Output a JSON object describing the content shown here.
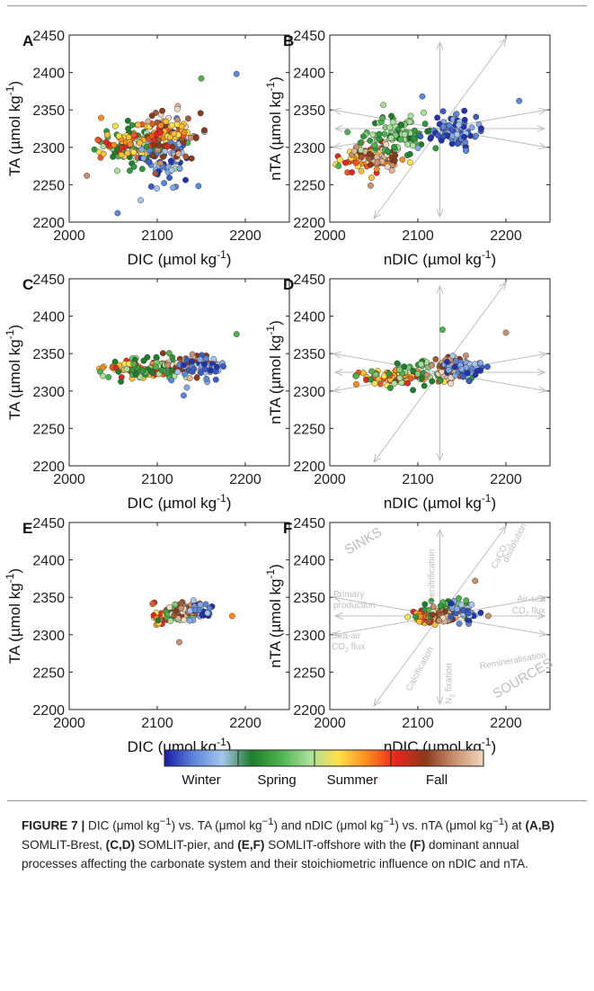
{
  "figure": {
    "colorbar": {
      "stops": [
        "#1a1aa6",
        "#5b86d9",
        "#a7c6ee",
        "#1e7e2a",
        "#4db34d",
        "#a8e09a",
        "#ffe14a",
        "#ff8a1e",
        "#e8251e",
        "#8b3a1a",
        "#c89070",
        "#f1d9bd"
      ],
      "season_labels": [
        "Winter",
        "Spring",
        "Summer",
        "Fall"
      ]
    },
    "season_colors": {
      "winter": [
        "#2233b0",
        "#3a5cc8",
        "#5b86d9",
        "#86a8e6",
        "#a7c6ee"
      ],
      "spring": [
        "#1e7e2a",
        "#2f9a3c",
        "#4db34d",
        "#7cc97a",
        "#a8e09a"
      ],
      "summer": [
        "#ffe14a",
        "#ffc030",
        "#ff8a1e",
        "#f25520",
        "#e8251e"
      ],
      "fall": [
        "#8b3a1a",
        "#a35a35",
        "#c89070",
        "#dcb497",
        "#f1d9bd"
      ]
    },
    "arrow_color": "#bdbdbd",
    "process_labels": {
      "sinks": "SINKS",
      "sources": "SOURCES",
      "denitrification": "Denitrification",
      "caco3_dissolution_1": "CaCO",
      "caco3_dissolution_2": "3",
      "caco3_dissolution_3": "dissolution",
      "air_sea_1": "Air-sea",
      "air_sea_2": "CO",
      "air_sea_3": "2",
      "air_sea_4": "flux",
      "primary_production_1": "Primary",
      "primary_production_2": "production",
      "sea_air_1": "Sea-air",
      "sea_air_2": "CO",
      "sea_air_3": "2",
      "sea_air_4": "flux",
      "remineralisation": "Remineralisation",
      "calcification": "Calcification",
      "n2_fixation_1": "N",
      "n2_fixation_2": "2",
      "n2_fixation_3": "fixation"
    },
    "caption": {
      "label": "FIGURE 7 |",
      "t1": " DIC (μmol kg",
      "t2": ") vs. TA (μmol kg",
      "t3": ") and nDIC (μmol kg",
      "t4": ") vs. nTA (μmol kg",
      "t5": ") at ",
      "ab": "(A,B)",
      "t6": " SOMLIT-Brest, ",
      "cd": "(C,D)",
      "t7": " SOMLIT-pier, and ",
      "ef": "(E,F)",
      "t8": " SOMLIT-offshore with the ",
      "f": "(F)",
      "t9": " dominant annual processes affecting the carbonate system and their stoichiometric influence on nDIC and nTA.",
      "sup": "−1"
    }
  },
  "chart_data": [
    {
      "panel": "A",
      "type": "scatter",
      "xlabel": "DIC (µmol kg",
      "ylabel": "TA (µmol kg",
      "unit_sup": "-1",
      "xlim": [
        2000,
        2250
      ],
      "ylim": [
        2200,
        2450
      ],
      "xticks": [
        "2000",
        "2100",
        "2200"
      ],
      "yticks": [
        "2200",
        "2250",
        "2300",
        "2350",
        "2400",
        "2450"
      ],
      "clusters": [
        {
          "season": "spring",
          "n": 90,
          "cx": 2075,
          "cy": 2305,
          "sx": 30,
          "sy": 20
        },
        {
          "season": "summer",
          "n": 60,
          "cx": 2065,
          "cy": 2305,
          "sx": 25,
          "sy": 18
        },
        {
          "season": "winter",
          "n": 70,
          "cx": 2110,
          "cy": 2290,
          "sx": 18,
          "sy": 28
        },
        {
          "season": "fall",
          "n": 55,
          "cx": 2115,
          "cy": 2315,
          "sx": 22,
          "sy": 20
        },
        {
          "season": "summer",
          "n": 40,
          "cx": 2110,
          "cy": 2320,
          "sx": 18,
          "sy": 12
        }
      ],
      "extremes": [
        [
          2190,
          2398
        ],
        [
          2055,
          2212
        ],
        [
          2150,
          2392
        ],
        [
          2020,
          2262
        ]
      ]
    },
    {
      "panel": "B",
      "type": "scatter",
      "xlabel": "nDIC (µmol kg",
      "ylabel": "nTA (µmol kg",
      "unit_sup": "-1",
      "xlim": [
        2000,
        2250
      ],
      "ylim": [
        2200,
        2450
      ],
      "xticks": [
        "2000",
        "2100",
        "2200"
      ],
      "yticks": [
        "2200",
        "2250",
        "2300",
        "2350",
        "2400",
        "2450"
      ],
      "process_arrows": true,
      "clusters": [
        {
          "season": "summer",
          "n": 90,
          "cx": 2045,
          "cy": 2285,
          "sx": 20,
          "sy": 12
        },
        {
          "season": "fall",
          "n": 60,
          "cx": 2055,
          "cy": 2285,
          "sx": 20,
          "sy": 12
        },
        {
          "season": "spring",
          "n": 90,
          "cx": 2080,
          "cy": 2315,
          "sx": 28,
          "sy": 20
        },
        {
          "season": "winter",
          "n": 80,
          "cx": 2140,
          "cy": 2320,
          "sx": 18,
          "sy": 18
        }
      ],
      "extremes": [
        [
          2215,
          2362
        ],
        [
          2010,
          2275
        ],
        [
          2105,
          2368
        ]
      ]
    },
    {
      "panel": "C",
      "type": "scatter",
      "xlabel": "DIC (µmol kg",
      "ylabel": "TA (µmol kg",
      "unit_sup": "-1",
      "xlim": [
        2000,
        2250
      ],
      "ylim": [
        2200,
        2450
      ],
      "xticks": [
        "2000",
        "2100",
        "2200"
      ],
      "yticks": [
        "2200",
        "2250",
        "2300",
        "2350",
        "2400",
        "2450"
      ],
      "clusters": [
        {
          "season": "summer",
          "n": 70,
          "cx": 2080,
          "cy": 2330,
          "sx": 25,
          "sy": 8
        },
        {
          "season": "spring",
          "n": 60,
          "cx": 2095,
          "cy": 2330,
          "sx": 30,
          "sy": 12
        },
        {
          "season": "fall",
          "n": 50,
          "cx": 2135,
          "cy": 2335,
          "sx": 18,
          "sy": 10
        },
        {
          "season": "winter",
          "n": 45,
          "cx": 2150,
          "cy": 2330,
          "sx": 16,
          "sy": 12
        }
      ],
      "extremes": [
        [
          2190,
          2376
        ],
        [
          2035,
          2326
        ],
        [
          2130,
          2294
        ]
      ]
    },
    {
      "panel": "D",
      "type": "scatter",
      "xlabel": "nDIC (µmol kg",
      "ylabel": "nTA (µmol kg",
      "unit_sup": "-1",
      "xlim": [
        2000,
        2250
      ],
      "ylim": [
        2200,
        2450
      ],
      "xticks": [
        "2000",
        "2100",
        "2200"
      ],
      "yticks": [
        "2200",
        "2250",
        "2300",
        "2350",
        "2400",
        "2450"
      ],
      "process_arrows": true,
      "clusters": [
        {
          "season": "summer",
          "n": 70,
          "cx": 2075,
          "cy": 2318,
          "sx": 28,
          "sy": 7
        },
        {
          "season": "spring",
          "n": 55,
          "cx": 2100,
          "cy": 2325,
          "sx": 30,
          "sy": 14
        },
        {
          "season": "fall",
          "n": 50,
          "cx": 2135,
          "cy": 2330,
          "sx": 16,
          "sy": 10
        },
        {
          "season": "winter",
          "n": 45,
          "cx": 2150,
          "cy": 2330,
          "sx": 15,
          "sy": 10
        }
      ],
      "extremes": [
        [
          2200,
          2378
        ],
        [
          2128,
          2382
        ],
        [
          2030,
          2320
        ]
      ]
    },
    {
      "panel": "E",
      "type": "scatter",
      "xlabel": "DIC (µmol kg",
      "ylabel": "TA (µmol kg",
      "unit_sup": "-1",
      "xlim": [
        2000,
        2250
      ],
      "ylim": [
        2200,
        2450
      ],
      "xticks": [
        "2000",
        "2100",
        "2200"
      ],
      "yticks": [
        "2200",
        "2250",
        "2300",
        "2350",
        "2400",
        "2450"
      ],
      "clusters": [
        {
          "season": "summer",
          "n": 45,
          "cx": 2110,
          "cy": 2328,
          "sx": 12,
          "sy": 8
        },
        {
          "season": "spring",
          "n": 40,
          "cx": 2125,
          "cy": 2328,
          "sx": 12,
          "sy": 10
        },
        {
          "season": "fall",
          "n": 45,
          "cx": 2130,
          "cy": 2332,
          "sx": 10,
          "sy": 8
        },
        {
          "season": "winter",
          "n": 30,
          "cx": 2150,
          "cy": 2330,
          "sx": 12,
          "sy": 8
        }
      ],
      "extremes": [
        [
          2185,
          2325
        ],
        [
          2125,
          2290
        ]
      ]
    },
    {
      "panel": "F",
      "type": "scatter",
      "xlabel": "nDIC (µmol kg",
      "ylabel": "nTA (µmol kg",
      "unit_sup": "-1",
      "xlim": [
        2000,
        2250
      ],
      "ylim": [
        2200,
        2450
      ],
      "xticks": [
        "2000",
        "2100",
        "2200"
      ],
      "yticks": [
        "2200",
        "2250",
        "2300",
        "2350",
        "2400",
        "2450"
      ],
      "process_arrows": true,
      "process_labels": true,
      "clusters": [
        {
          "season": "summer",
          "n": 45,
          "cx": 2110,
          "cy": 2325,
          "sx": 12,
          "sy": 6
        },
        {
          "season": "spring",
          "n": 50,
          "cx": 2135,
          "cy": 2335,
          "sx": 15,
          "sy": 10
        },
        {
          "season": "fall",
          "n": 45,
          "cx": 2130,
          "cy": 2325,
          "sx": 10,
          "sy": 6
        },
        {
          "season": "winter",
          "n": 30,
          "cx": 2155,
          "cy": 2330,
          "sx": 12,
          "sy": 8
        }
      ],
      "extremes": [
        [
          2180,
          2325
        ],
        [
          2165,
          2372
        ]
      ]
    }
  ]
}
